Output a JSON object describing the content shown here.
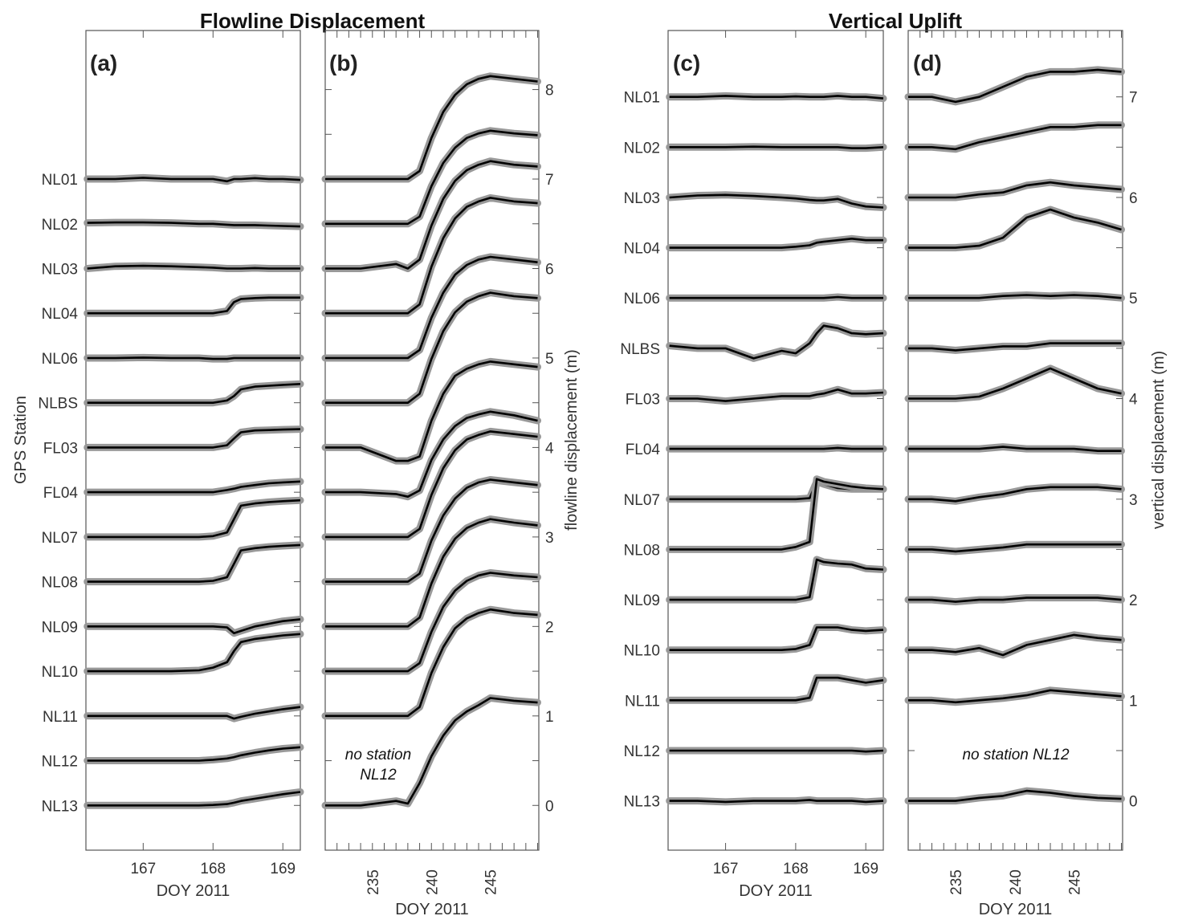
{
  "titles": {
    "left": "Flowline Displacement",
    "right": "Vertical Uplift"
  },
  "notes": {
    "b_line1": "no station",
    "b_line2": "NL12",
    "d": "no station NL12"
  },
  "chart_data": [
    {
      "panel": "(a)",
      "type": "line",
      "xlabel": "DOY 2011",
      "ylabel": "GPS Station",
      "xlim": [
        166.18,
        169.25
      ],
      "xticks": [
        167,
        168,
        169
      ],
      "stations": [
        "NL01",
        "NL02",
        "NL03",
        "NL04",
        "NL06",
        "NLBS",
        "FL03",
        "FL04",
        "NL07",
        "NL08",
        "NL09",
        "NL10",
        "NL11",
        "NL12",
        "NL13"
      ],
      "x": [
        166.2,
        166.6,
        167.0,
        167.4,
        167.8,
        168.0,
        168.2,
        168.3,
        168.4,
        168.6,
        168.8,
        169.0,
        169.25
      ],
      "series": [
        {
          "name": "NL01",
          "values": [
            0,
            0,
            0.03,
            0,
            0,
            0,
            -0.05,
            0,
            0,
            0.02,
            0,
            0,
            -0.02
          ]
        },
        {
          "name": "NL02",
          "values": [
            0.02,
            0.03,
            0.03,
            0.02,
            0,
            0,
            -0.02,
            -0.03,
            -0.03,
            -0.03,
            -0.04,
            -0.05,
            -0.06
          ]
        },
        {
          "name": "NL03",
          "values": [
            0,
            0.05,
            0.06,
            0.05,
            0.03,
            0.02,
            0,
            0,
            0,
            0.01,
            0,
            0,
            0
          ]
        },
        {
          "name": "NL04",
          "values": [
            0,
            0,
            0,
            0,
            0,
            0,
            0.05,
            0.25,
            0.32,
            0.34,
            0.35,
            0.35,
            0.35
          ]
        },
        {
          "name": "NL06",
          "values": [
            0,
            0,
            0.01,
            0,
            0,
            -0.02,
            -0.02,
            0,
            0,
            0,
            0,
            0,
            0
          ]
        },
        {
          "name": "NLBS",
          "values": [
            0,
            0,
            0,
            0,
            0,
            0,
            0.05,
            0.15,
            0.3,
            0.36,
            0.38,
            0.4,
            0.42
          ]
        },
        {
          "name": "FL03",
          "values": [
            0,
            0,
            0,
            0,
            0,
            0,
            0.05,
            0.2,
            0.34,
            0.38,
            0.39,
            0.4,
            0.41
          ]
        },
        {
          "name": "FL04",
          "values": [
            0,
            0,
            0,
            0,
            0,
            0,
            0.05,
            0.08,
            0.12,
            0.16,
            0.2,
            0.22,
            0.24
          ]
        },
        {
          "name": "NL07",
          "values": [
            0,
            0,
            0,
            0,
            0,
            0.02,
            0.1,
            0.4,
            0.7,
            0.75,
            0.78,
            0.8,
            0.82
          ]
        },
        {
          "name": "NL08",
          "values": [
            0,
            0,
            0,
            0,
            0,
            0.02,
            0.1,
            0.4,
            0.7,
            0.75,
            0.78,
            0.8,
            0.82
          ]
        },
        {
          "name": "NL09",
          "values": [
            0,
            0,
            0,
            0,
            0,
            0,
            -0.02,
            -0.15,
            -0.1,
            0,
            0.06,
            0.12,
            0.16
          ]
        },
        {
          "name": "NL10",
          "values": [
            0,
            0,
            0,
            0,
            0.02,
            0.08,
            0.2,
            0.45,
            0.65,
            0.72,
            0.76,
            0.8,
            0.83
          ]
        },
        {
          "name": "NL11",
          "values": [
            0,
            0,
            0,
            0,
            0,
            0,
            0,
            -0.06,
            -0.02,
            0.05,
            0.1,
            0.15,
            0.2
          ]
        },
        {
          "name": "NL12",
          "values": [
            0,
            0,
            0,
            0,
            0,
            0.02,
            0.05,
            0.08,
            0.12,
            0.18,
            0.23,
            0.27,
            0.3
          ]
        },
        {
          "name": "NL13",
          "values": [
            0,
            0,
            0,
            0,
            0,
            0.01,
            0.03,
            0.06,
            0.1,
            0.15,
            0.2,
            0.25,
            0.3
          ]
        }
      ]
    },
    {
      "panel": "(b)",
      "type": "line",
      "xlabel": "DOY 2011",
      "ylabel": "flowline displacement (m)",
      "xlim": [
        231,
        249.1
      ],
      "ylim": [
        -0.5,
        8.66
      ],
      "xticks": [
        235,
        240,
        245
      ],
      "yticks": [
        0,
        1,
        2,
        3,
        4,
        5,
        6,
        7,
        8
      ],
      "x": [
        231,
        234,
        237,
        238,
        239,
        240,
        241,
        242,
        243,
        244,
        245,
        247,
        249
      ],
      "series": [
        {
          "name": "NL01",
          "values": [
            7,
            7,
            7,
            7,
            7.09,
            7.46,
            7.75,
            7.94,
            8.06,
            8.12,
            8.15,
            8.12,
            8.09
          ]
        },
        {
          "name": "NL02",
          "values": [
            6.5,
            6.5,
            6.5,
            6.5,
            6.58,
            6.92,
            7.18,
            7.35,
            7.46,
            7.51,
            7.54,
            7.51,
            7.49
          ]
        },
        {
          "name": "NL03",
          "values": [
            6,
            6,
            6.05,
            6,
            6.1,
            6.48,
            6.78,
            6.98,
            7.1,
            7.16,
            7.2,
            7.16,
            7.14
          ]
        },
        {
          "name": "NL04",
          "values": [
            5.5,
            5.5,
            5.5,
            5.5,
            5.6,
            6.02,
            6.34,
            6.56,
            6.69,
            6.75,
            6.79,
            6.75,
            6.73
          ]
        },
        {
          "name": "NL06",
          "values": [
            5,
            5,
            5,
            5,
            5.09,
            5.45,
            5.73,
            5.93,
            6.04,
            6.1,
            6.13,
            6.1,
            6.07
          ]
        },
        {
          "name": "NLBS",
          "values": [
            4.5,
            4.5,
            4.5,
            4.5,
            4.6,
            4.99,
            5.3,
            5.51,
            5.63,
            5.69,
            5.73,
            5.69,
            5.67
          ]
        },
        {
          "name": "FL03",
          "values": [
            4,
            4,
            3.85,
            3.85,
            3.9,
            4.3,
            4.6,
            4.8,
            4.88,
            4.93,
            4.96,
            4.93,
            4.9
          ]
        },
        {
          "name": "FL04",
          "values": [
            3.5,
            3.5,
            3.48,
            3.45,
            3.52,
            3.86,
            4.09,
            4.24,
            4.33,
            4.37,
            4.4,
            4.36,
            4.3
          ]
        },
        {
          "name": "NL07",
          "values": [
            3,
            3,
            3,
            3,
            3.09,
            3.47,
            3.77,
            3.97,
            4.09,
            4.14,
            4.18,
            4.15,
            4.12
          ]
        },
        {
          "name": "NL08",
          "values": [
            2.5,
            2.5,
            2.5,
            2.5,
            2.59,
            2.96,
            3.24,
            3.43,
            3.55,
            3.61,
            3.64,
            3.61,
            3.58
          ]
        },
        {
          "name": "NL09",
          "values": [
            2,
            2,
            2,
            2,
            2.1,
            2.48,
            2.78,
            2.98,
            3.1,
            3.16,
            3.2,
            3.16,
            3.13
          ]
        },
        {
          "name": "NL10",
          "values": [
            1.5,
            1.5,
            1.5,
            1.5,
            1.59,
            1.94,
            2.22,
            2.4,
            2.51,
            2.57,
            2.6,
            2.57,
            2.55
          ]
        },
        {
          "name": "NL11",
          "values": [
            1,
            1,
            1,
            1,
            1.1,
            1.48,
            1.77,
            1.98,
            2.09,
            2.15,
            2.19,
            2.15,
            2.13
          ]
        },
        {
          "name": "NL13",
          "values": [
            0,
            0,
            0.05,
            0.02,
            0.25,
            0.55,
            0.78,
            0.95,
            1.05,
            1.12,
            1.2,
            1.17,
            1.15
          ]
        }
      ]
    },
    {
      "panel": "(c)",
      "type": "line",
      "xlabel": "DOY 2011",
      "xlim": [
        166.18,
        169.25
      ],
      "xticks": [
        167,
        168,
        169
      ],
      "stations": [
        "NL01",
        "NL02",
        "NL03",
        "NL04",
        "NL06",
        "NLBS",
        "FL03",
        "FL04",
        "NL07",
        "NL08",
        "NL09",
        "NL10",
        "NL11",
        "NL12",
        "NL13"
      ],
      "x": [
        166.2,
        166.6,
        167.0,
        167.4,
        167.8,
        168.0,
        168.2,
        168.3,
        168.4,
        168.6,
        168.8,
        169.0,
        169.25
      ],
      "series": [
        {
          "name": "NL01",
          "values": [
            0,
            0,
            0.02,
            0,
            0,
            0.01,
            0,
            0,
            0,
            0.02,
            0,
            0,
            -0.03
          ]
        },
        {
          "name": "NL02",
          "values": [
            0,
            0,
            0,
            0.01,
            0,
            0,
            0,
            0,
            0,
            0,
            -0.02,
            -0.02,
            0
          ]
        },
        {
          "name": "NL03",
          "values": [
            0,
            0.04,
            0.05,
            0.03,
            0,
            -0.02,
            -0.05,
            -0.06,
            -0.06,
            -0.03,
            -0.12,
            -0.18,
            -0.2
          ]
        },
        {
          "name": "NL04",
          "values": [
            0,
            0,
            0,
            0,
            0,
            0.02,
            0.05,
            0.1,
            0.12,
            0.15,
            0.18,
            0.15,
            0.15
          ]
        },
        {
          "name": "NL06",
          "values": [
            0,
            0,
            0,
            0,
            0,
            0,
            0,
            0,
            0,
            0.02,
            0,
            0,
            0
          ]
        },
        {
          "name": "NLBS",
          "values": [
            0.05,
            0,
            0,
            -0.2,
            -0.05,
            -0.1,
            0.1,
            0.3,
            0.45,
            0.4,
            0.3,
            0.28,
            0.3
          ]
        },
        {
          "name": "FL03",
          "values": [
            0,
            0,
            -0.05,
            0,
            0.05,
            0.05,
            0.05,
            0.08,
            0.1,
            0.18,
            0.1,
            0.1,
            0.12
          ]
        },
        {
          "name": "FL04",
          "values": [
            0,
            0,
            0,
            0,
            0,
            0,
            0,
            0,
            0,
            0.02,
            0,
            0,
            0
          ]
        },
        {
          "name": "NL07",
          "values": [
            0,
            0,
            0,
            0,
            0,
            0,
            0.02,
            0.35,
            0.3,
            0.22,
            0.2,
            0.2,
            0.2
          ]
        },
        {
          "name": "NL08",
          "values": [
            0,
            0,
            0,
            0,
            0,
            0.05,
            0.15,
            1.4,
            1.35,
            1.3,
            1.25,
            1.22,
            1.2
          ]
        },
        {
          "name": "NL09",
          "values": [
            0,
            0,
            0,
            0,
            0,
            0,
            0.05,
            0.8,
            0.75,
            0.72,
            0.7,
            0.62,
            0.6
          ]
        },
        {
          "name": "NL10",
          "values": [
            0,
            0,
            0,
            0,
            0,
            0.02,
            0.1,
            0.45,
            0.45,
            0.45,
            0.4,
            0.38,
            0.4
          ]
        },
        {
          "name": "NL11",
          "values": [
            0,
            0,
            0,
            0,
            0,
            0,
            0.05,
            0.45,
            0.45,
            0.45,
            0.4,
            0.35,
            0.4
          ]
        },
        {
          "name": "NL12",
          "values": [
            0,
            0,
            0,
            0,
            0,
            0,
            0,
            0,
            0,
            0,
            0,
            -0.02,
            0
          ]
        },
        {
          "name": "NL13",
          "values": [
            0,
            0,
            -0.02,
            0,
            0,
            0,
            0.02,
            0,
            0,
            0,
            0,
            -0.02,
            0
          ]
        }
      ]
    },
    {
      "panel": "(d)",
      "type": "line",
      "xlabel": "DOY 2011",
      "ylabel": "vertical displacement (m)",
      "xlim": [
        231,
        249.1
      ],
      "ylim": [
        -0.49,
        7.66
      ],
      "xticks": [
        235,
        240,
        245
      ],
      "yticks": [
        0,
        1,
        2,
        3,
        4,
        5,
        6,
        7
      ],
      "x": [
        231,
        233,
        235,
        237,
        239,
        241,
        243,
        245,
        247,
        249
      ],
      "series": [
        {
          "name": "NL01",
          "values": [
            7,
            7,
            6.95,
            7.0,
            7.1,
            7.2,
            7.25,
            7.25,
            7.27,
            7.25
          ]
        },
        {
          "name": "NL02",
          "values": [
            6.5,
            6.5,
            6.48,
            6.55,
            6.6,
            6.65,
            6.7,
            6.7,
            6.72,
            6.72
          ]
        },
        {
          "name": "NL03",
          "values": [
            6,
            6,
            6,
            6.03,
            6.05,
            6.12,
            6.15,
            6.12,
            6.1,
            6.08
          ]
        },
        {
          "name": "NL04",
          "values": [
            5.5,
            5.5,
            5.5,
            5.52,
            5.6,
            5.8,
            5.88,
            5.8,
            5.75,
            5.68
          ]
        },
        {
          "name": "NL06",
          "values": [
            5,
            5,
            5,
            5,
            5.02,
            5.03,
            5.02,
            5.03,
            5.02,
            5.0
          ]
        },
        {
          "name": "NLBS",
          "values": [
            4.5,
            4.5,
            4.48,
            4.5,
            4.52,
            4.52,
            4.55,
            4.55,
            4.55,
            4.55
          ]
        },
        {
          "name": "FL03",
          "values": [
            4,
            4,
            4,
            4.02,
            4.1,
            4.2,
            4.3,
            4.2,
            4.1,
            4.05
          ]
        },
        {
          "name": "FL04",
          "values": [
            3.5,
            3.5,
            3.5,
            3.5,
            3.52,
            3.5,
            3.5,
            3.5,
            3.48,
            3.48
          ]
        },
        {
          "name": "NL07",
          "values": [
            3,
            3,
            2.98,
            3.02,
            3.05,
            3.1,
            3.12,
            3.12,
            3.12,
            3.1
          ]
        },
        {
          "name": "NL08",
          "values": [
            2.5,
            2.5,
            2.48,
            2.5,
            2.52,
            2.55,
            2.55,
            2.55,
            2.55,
            2.55
          ]
        },
        {
          "name": "NL09",
          "values": [
            2,
            2,
            1.98,
            2,
            2,
            2.02,
            2.02,
            2.02,
            2.02,
            2.0
          ]
        },
        {
          "name": "NL10",
          "values": [
            1.5,
            1.5,
            1.48,
            1.52,
            1.45,
            1.55,
            1.6,
            1.65,
            1.62,
            1.6
          ]
        },
        {
          "name": "NL11",
          "values": [
            1,
            1,
            0.98,
            1,
            1.02,
            1.05,
            1.1,
            1.08,
            1.06,
            1.04
          ]
        },
        {
          "name": "NL13",
          "values": [
            0,
            0,
            0,
            0.03,
            0.05,
            0.1,
            0.08,
            0.05,
            0.03,
            0.02
          ]
        }
      ]
    }
  ],
  "colors": {
    "raw": "#999999",
    "smoothed": "#000000",
    "axis": "#555555"
  }
}
